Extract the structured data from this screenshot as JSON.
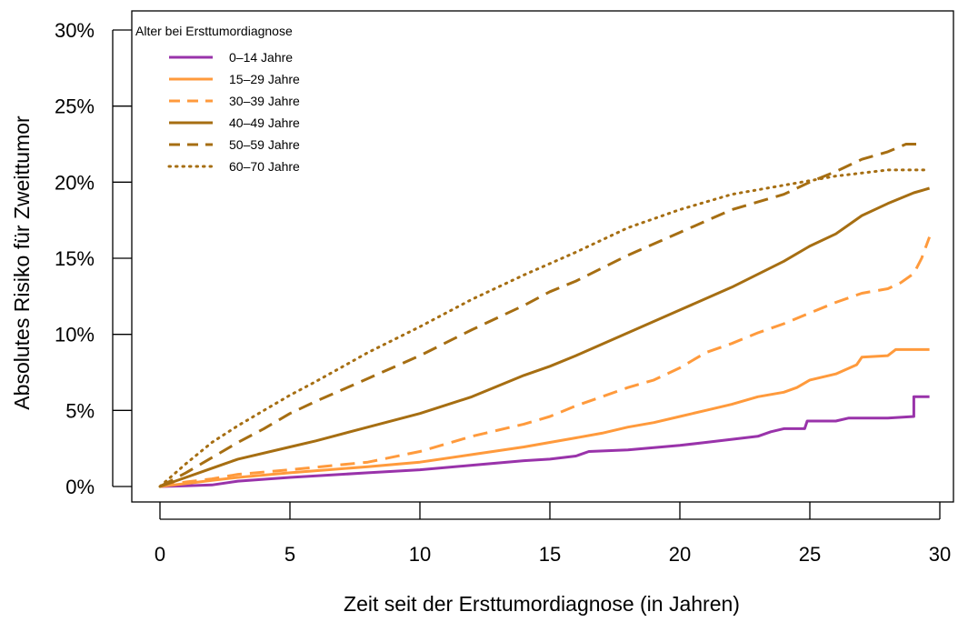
{
  "chart_data": {
    "type": "line",
    "title": "",
    "xlabel": "Zeit seit der Ersttumordiagnose (in Jahren)",
    "ylabel": "Absolutes Risiko für Zweittumor",
    "xlim": [
      0,
      30
    ],
    "ylim": [
      0,
      30
    ],
    "x_ticks": [
      0,
      5,
      10,
      15,
      20,
      25,
      30
    ],
    "y_ticks": [
      0,
      5,
      10,
      15,
      20,
      25,
      30
    ],
    "y_tick_labels": [
      "0%",
      "5%",
      "10%",
      "15%",
      "20%",
      "25%",
      "30%"
    ],
    "grid": false,
    "legend": {
      "title": "Alter bei Ersttumordiagnose",
      "placement": "top-left"
    },
    "series": [
      {
        "name": "0–14 Jahre",
        "color": "#9933aa",
        "dash": "solid",
        "points": [
          [
            0,
            0
          ],
          [
            1,
            0.05
          ],
          [
            2,
            0.1
          ],
          [
            3,
            0.35
          ],
          [
            5,
            0.6
          ],
          [
            8,
            0.9
          ],
          [
            10,
            1.1
          ],
          [
            12,
            1.4
          ],
          [
            14,
            1.7
          ],
          [
            15,
            1.8
          ],
          [
            16,
            2.0
          ],
          [
            16.5,
            2.3
          ],
          [
            18,
            2.4
          ],
          [
            20,
            2.7
          ],
          [
            21,
            2.9
          ],
          [
            22,
            3.1
          ],
          [
            23,
            3.3
          ],
          [
            23.5,
            3.6
          ],
          [
            24,
            3.8
          ],
          [
            24.8,
            3.8
          ],
          [
            24.9,
            4.3
          ],
          [
            26,
            4.3
          ],
          [
            26.5,
            4.5
          ],
          [
            28,
            4.5
          ],
          [
            29,
            4.6
          ],
          [
            29,
            5.9
          ],
          [
            29.6,
            5.9
          ]
        ]
      },
      {
        "name": "15–29 Jahre",
        "color": "#ff9a3c",
        "dash": "solid",
        "points": [
          [
            0,
            0
          ],
          [
            1,
            0.2
          ],
          [
            2,
            0.4
          ],
          [
            3,
            0.6
          ],
          [
            5,
            0.9
          ],
          [
            8,
            1.3
          ],
          [
            10,
            1.6
          ],
          [
            12,
            2.1
          ],
          [
            14,
            2.6
          ],
          [
            15,
            2.9
          ],
          [
            16,
            3.2
          ],
          [
            17,
            3.5
          ],
          [
            18,
            3.9
          ],
          [
            19,
            4.2
          ],
          [
            20,
            4.6
          ],
          [
            21,
            5.0
          ],
          [
            22,
            5.4
          ],
          [
            23,
            5.9
          ],
          [
            24,
            6.2
          ],
          [
            24.5,
            6.5
          ],
          [
            25,
            7.0
          ],
          [
            26,
            7.4
          ],
          [
            26.8,
            8.0
          ],
          [
            27,
            8.5
          ],
          [
            28,
            8.6
          ],
          [
            28.3,
            9.0
          ],
          [
            29.6,
            9.0
          ]
        ]
      },
      {
        "name": "30–39 Jahre",
        "color": "#ff9a3c",
        "dash": "dashed",
        "points": [
          [
            0,
            0
          ],
          [
            1,
            0.3
          ],
          [
            2,
            0.5
          ],
          [
            3,
            0.8
          ],
          [
            5,
            1.1
          ],
          [
            8,
            1.6
          ],
          [
            10,
            2.3
          ],
          [
            12,
            3.3
          ],
          [
            14,
            4.1
          ],
          [
            15,
            4.6
          ],
          [
            16,
            5.3
          ],
          [
            17,
            5.9
          ],
          [
            18,
            6.5
          ],
          [
            19,
            7.0
          ],
          [
            20,
            7.8
          ],
          [
            21,
            8.8
          ],
          [
            22,
            9.4
          ],
          [
            23,
            10.1
          ],
          [
            24,
            10.7
          ],
          [
            25,
            11.4
          ],
          [
            26,
            12.1
          ],
          [
            27,
            12.7
          ],
          [
            28,
            13.0
          ],
          [
            28.5,
            13.4
          ],
          [
            29,
            14.0
          ],
          [
            29.3,
            15.0
          ],
          [
            29.6,
            16.4
          ]
        ]
      },
      {
        "name": "40–49 Jahre",
        "color": "#a66e12",
        "dash": "solid",
        "points": [
          [
            0,
            0
          ],
          [
            1,
            0.6
          ],
          [
            2,
            1.2
          ],
          [
            3,
            1.8
          ],
          [
            5,
            2.6
          ],
          [
            6,
            3.0
          ],
          [
            8,
            3.9
          ],
          [
            10,
            4.8
          ],
          [
            12,
            5.9
          ],
          [
            14,
            7.3
          ],
          [
            15,
            7.9
          ],
          [
            16,
            8.6
          ],
          [
            18,
            10.1
          ],
          [
            20,
            11.6
          ],
          [
            22,
            13.1
          ],
          [
            24,
            14.8
          ],
          [
            25,
            15.8
          ],
          [
            26,
            16.6
          ],
          [
            27,
            17.8
          ],
          [
            28,
            18.6
          ],
          [
            29,
            19.3
          ],
          [
            29.6,
            19.6
          ]
        ]
      },
      {
        "name": "50–59 Jahre",
        "color": "#a66e12",
        "dash": "dashed",
        "points": [
          [
            0,
            0
          ],
          [
            1,
            0.9
          ],
          [
            2,
            1.9
          ],
          [
            3,
            2.9
          ],
          [
            4,
            3.8
          ],
          [
            5,
            4.8
          ],
          [
            6,
            5.6
          ],
          [
            8,
            7.1
          ],
          [
            10,
            8.6
          ],
          [
            12,
            10.3
          ],
          [
            14,
            11.9
          ],
          [
            15,
            12.8
          ],
          [
            16,
            13.5
          ],
          [
            18,
            15.2
          ],
          [
            20,
            16.7
          ],
          [
            22,
            18.2
          ],
          [
            24,
            19.2
          ],
          [
            25,
            20.0
          ],
          [
            26,
            20.7
          ],
          [
            27,
            21.5
          ],
          [
            28,
            22.0
          ],
          [
            28.7,
            22.5
          ],
          [
            29.3,
            22.5
          ]
        ]
      },
      {
        "name": "60–70 Jahre",
        "color": "#a66e12",
        "dash": "dotted",
        "points": [
          [
            0,
            0
          ],
          [
            1,
            1.5
          ],
          [
            2,
            2.9
          ],
          [
            3,
            4.0
          ],
          [
            4,
            5.0
          ],
          [
            5,
            6.0
          ],
          [
            6,
            6.9
          ],
          [
            8,
            8.8
          ],
          [
            10,
            10.5
          ],
          [
            12,
            12.3
          ],
          [
            14,
            13.9
          ],
          [
            16,
            15.4
          ],
          [
            18,
            17.0
          ],
          [
            20,
            18.2
          ],
          [
            22,
            19.2
          ],
          [
            24,
            19.8
          ],
          [
            25,
            20.1
          ],
          [
            26,
            20.4
          ],
          [
            27,
            20.6
          ],
          [
            28,
            20.8
          ],
          [
            29.5,
            20.8
          ]
        ]
      }
    ]
  }
}
